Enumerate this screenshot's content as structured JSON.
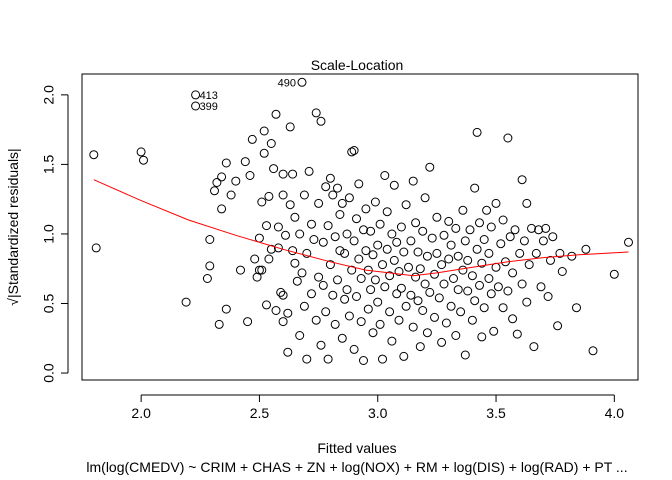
{
  "chart_data": {
    "type": "scatter",
    "title": "Scale-Location",
    "xlabel": "Fitted values",
    "subtitle": "lm(log(CMEDV) ~ CRIM + CHAS + ZN + log(NOX) + RM + log(DIS) + log(RAD) + PT ...",
    "ylabel": "√|Standardized residuals|",
    "xlim": [
      1.75,
      4.1
    ],
    "ylim": [
      -0.05,
      2.15
    ],
    "x_ticks": [
      "2.0",
      "2.5",
      "3.0",
      "3.5",
      "4.0"
    ],
    "y_ticks": [
      "0.0",
      "0.5",
      "1.0",
      "1.5",
      "2.0"
    ],
    "labeled_points": [
      {
        "label": "413",
        "x": 2.23,
        "y": 2.0
      },
      {
        "label": "399",
        "x": 2.23,
        "y": 1.92
      },
      {
        "label": "490",
        "x": 2.68,
        "y": 2.09
      }
    ],
    "points": [
      [
        1.8,
        1.57
      ],
      [
        1.81,
        0.9
      ],
      [
        2.0,
        1.59
      ],
      [
        2.01,
        1.53
      ],
      [
        2.19,
        0.51
      ],
      [
        2.23,
        1.92
      ],
      [
        2.23,
        2.0
      ],
      [
        2.28,
        0.68
      ],
      [
        2.29,
        0.77
      ],
      [
        2.29,
        0.96
      ],
      [
        2.31,
        1.31
      ],
      [
        2.32,
        1.37
      ],
      [
        2.33,
        0.35
      ],
      [
        2.34,
        1.41
      ],
      [
        2.34,
        1.18
      ],
      [
        2.36,
        0.46
      ],
      [
        2.36,
        1.51
      ],
      [
        2.38,
        1.28
      ],
      [
        2.4,
        1.38
      ],
      [
        2.42,
        0.74
      ],
      [
        2.44,
        1.52
      ],
      [
        2.45,
        0.37
      ],
      [
        2.46,
        1.42
      ],
      [
        2.47,
        1.68
      ],
      [
        2.48,
        0.82
      ],
      [
        2.49,
        0.69
      ],
      [
        2.5,
        0.97
      ],
      [
        2.5,
        0.74
      ],
      [
        2.51,
        1.23
      ],
      [
        2.51,
        0.74
      ],
      [
        2.52,
        1.58
      ],
      [
        2.52,
        1.74
      ],
      [
        2.53,
        0.49
      ],
      [
        2.53,
        1.06
      ],
      [
        2.54,
        0.82
      ],
      [
        2.54,
        1.27
      ],
      [
        2.55,
        1.65
      ],
      [
        2.55,
        0.89
      ],
      [
        2.56,
        1.47
      ],
      [
        2.57,
        1.86
      ],
      [
        2.57,
        0.45
      ],
      [
        2.58,
        0.9
      ],
      [
        2.58,
        1.05
      ],
      [
        2.59,
        0.58
      ],
      [
        2.6,
        0.56
      ],
      [
        2.6,
        0.37
      ],
      [
        2.6,
        1.43
      ],
      [
        2.6,
        1.28
      ],
      [
        2.61,
        0.99
      ],
      [
        2.62,
        0.43
      ],
      [
        2.62,
        0.15
      ],
      [
        2.63,
        1.21
      ],
      [
        2.63,
        1.77
      ],
      [
        2.64,
        1.43
      ],
      [
        2.64,
        0.88
      ],
      [
        2.65,
        1.12
      ],
      [
        2.65,
        0.79
      ],
      [
        2.66,
        0.66
      ],
      [
        2.67,
        1.0
      ],
      [
        2.67,
        0.27
      ],
      [
        2.68,
        2.09
      ],
      [
        2.68,
        0.72
      ],
      [
        2.69,
        0.48
      ],
      [
        2.69,
        1.28
      ],
      [
        2.7,
        0.1
      ],
      [
        2.7,
        0.86
      ],
      [
        2.71,
        1.45
      ],
      [
        2.72,
        0.57
      ],
      [
        2.72,
        1.07
      ],
      [
        2.73,
        0.96
      ],
      [
        2.74,
        1.87
      ],
      [
        2.74,
        0.38
      ],
      [
        2.75,
        0.69
      ],
      [
        2.75,
        1.22
      ],
      [
        2.76,
        0.2
      ],
      [
        2.76,
        1.81
      ],
      [
        2.77,
        0.94
      ],
      [
        2.77,
        0.63
      ],
      [
        2.78,
        1.34
      ],
      [
        2.78,
        0.44
      ],
      [
        2.79,
        0.1
      ],
      [
        2.79,
        1.06
      ],
      [
        2.8,
        0.78
      ],
      [
        2.8,
        1.4
      ],
      [
        2.81,
        0.56
      ],
      [
        2.81,
        1.28
      ],
      [
        2.82,
        0.98
      ],
      [
        2.82,
        0.35
      ],
      [
        2.83,
        1.33
      ],
      [
        2.83,
        0.67
      ],
      [
        2.84,
        0.88
      ],
      [
        2.84,
        1.14
      ],
      [
        2.85,
        0.25
      ],
      [
        2.85,
        1.22
      ],
      [
        2.86,
        0.53
      ],
      [
        2.86,
        0.86
      ],
      [
        2.87,
        0.6
      ],
      [
        2.87,
        1.0
      ],
      [
        2.88,
        0.41
      ],
      [
        2.88,
        1.26
      ],
      [
        2.89,
        1.59
      ],
      [
        2.89,
        0.74
      ],
      [
        2.9,
        0.95
      ],
      [
        2.9,
        1.6
      ],
      [
        2.9,
        0.17
      ],
      [
        2.91,
        0.55
      ],
      [
        2.91,
        1.11
      ],
      [
        2.92,
        0.82
      ],
      [
        2.92,
        1.36
      ],
      [
        2.93,
        0.37
      ],
      [
        2.93,
        0.68
      ],
      [
        2.94,
        1.03
      ],
      [
        2.94,
        0.09
      ],
      [
        2.95,
        0.88
      ],
      [
        2.95,
        1.18
      ],
      [
        2.96,
        0.46
      ],
      [
        2.96,
        0.74
      ],
      [
        2.97,
        1.02
      ],
      [
        2.97,
        0.6
      ],
      [
        2.98,
        0.29
      ],
      [
        2.98,
        0.85
      ],
      [
        2.99,
        1.23
      ],
      [
        2.99,
        0.67
      ],
      [
        3.0,
        0.51
      ],
      [
        3.0,
        0.92
      ],
      [
        3.01,
        1.07
      ],
      [
        3.01,
        0.35
      ],
      [
        3.02,
        0.78
      ],
      [
        3.02,
        0.1
      ],
      [
        3.03,
        1.42
      ],
      [
        3.03,
        0.62
      ],
      [
        3.04,
        0.89
      ],
      [
        3.04,
        1.16
      ],
      [
        3.05,
        0.44
      ],
      [
        3.05,
        0.7
      ],
      [
        3.06,
        1.0
      ],
      [
        3.06,
        0.23
      ],
      [
        3.07,
        0.81
      ],
      [
        3.07,
        1.35
      ],
      [
        3.08,
        0.57
      ],
      [
        3.08,
        0.94
      ],
      [
        3.09,
        0.38
      ],
      [
        3.09,
        0.73
      ],
      [
        3.1,
        1.05
      ],
      [
        3.1,
        0.61
      ],
      [
        3.11,
        0.12
      ],
      [
        3.11,
        0.87
      ],
      [
        3.12,
        0.48
      ],
      [
        3.12,
        1.21
      ],
      [
        3.13,
        0.76
      ],
      [
        3.14,
        0.56
      ],
      [
        3.14,
        0.95
      ],
      [
        3.15,
        1.38
      ],
      [
        3.15,
        0.33
      ],
      [
        3.16,
        0.69
      ],
      [
        3.16,
        1.08
      ],
      [
        3.17,
        0.52
      ],
      [
        3.17,
        0.87
      ],
      [
        3.18,
        0.19
      ],
      [
        3.18,
        0.75
      ],
      [
        3.19,
        1.02
      ],
      [
        3.19,
        0.45
      ],
      [
        3.2,
        0.64
      ],
      [
        3.2,
        1.26
      ],
      [
        3.21,
        0.84
      ],
      [
        3.21,
        0.29
      ],
      [
        3.22,
        1.48
      ],
      [
        3.22,
        0.58
      ],
      [
        3.23,
        0.97
      ],
      [
        3.24,
        0.71
      ],
      [
        3.24,
        0.4
      ],
      [
        3.25,
        1.12
      ],
      [
        3.25,
        0.86
      ],
      [
        3.26,
        0.54
      ],
      [
        3.27,
        0.22
      ],
      [
        3.27,
        0.78
      ],
      [
        3.28,
        0.99
      ],
      [
        3.28,
        0.64
      ],
      [
        3.29,
        0.36
      ],
      [
        3.3,
        1.09
      ],
      [
        3.3,
        0.82
      ],
      [
        3.31,
        0.48
      ],
      [
        3.31,
        0.92
      ],
      [
        3.32,
        0.68
      ],
      [
        3.33,
        0.27
      ],
      [
        3.33,
        1.04
      ],
      [
        3.34,
        0.6
      ],
      [
        3.34,
        0.84
      ],
      [
        3.35,
        0.44
      ],
      [
        3.36,
        1.17
      ],
      [
        3.36,
        0.74
      ],
      [
        3.37,
        0.95
      ],
      [
        3.37,
        0.13
      ],
      [
        3.38,
        0.59
      ],
      [
        3.38,
        0.81
      ],
      [
        3.39,
        1.03
      ],
      [
        3.4,
        0.38
      ],
      [
        3.4,
        0.7
      ],
      [
        3.41,
        1.33
      ],
      [
        3.41,
        0.52
      ],
      [
        3.42,
        0.89
      ],
      [
        3.42,
        1.73
      ],
      [
        3.43,
        0.63
      ],
      [
        3.43,
        1.08
      ],
      [
        3.44,
        0.26
      ],
      [
        3.44,
        0.79
      ],
      [
        3.45,
        0.96
      ],
      [
        3.45,
        0.47
      ],
      [
        3.46,
        1.17
      ],
      [
        3.47,
        0.68
      ],
      [
        3.47,
        0.86
      ],
      [
        3.48,
        0.57
      ],
      [
        3.48,
        1.05
      ],
      [
        3.49,
        0.3
      ],
      [
        3.5,
        0.76
      ],
      [
        3.5,
        1.22
      ],
      [
        3.51,
        0.62
      ],
      [
        3.52,
        0.93
      ],
      [
        3.53,
        0.47
      ],
      [
        3.53,
        1.1
      ],
      [
        3.54,
        0.8
      ],
      [
        3.55,
        1.69
      ],
      [
        3.55,
        0.59
      ],
      [
        3.56,
        0.98
      ],
      [
        3.57,
        0.39
      ],
      [
        3.57,
        0.72
      ],
      [
        3.58,
        1.03
      ],
      [
        3.59,
        0.28
      ],
      [
        3.6,
        0.86
      ],
      [
        3.61,
        1.39
      ],
      [
        3.61,
        0.64
      ],
      [
        3.62,
        0.95
      ],
      [
        3.63,
        1.22
      ],
      [
        3.63,
        0.51
      ],
      [
        3.64,
        0.78
      ],
      [
        3.65,
        1.04
      ],
      [
        3.66,
        0.19
      ],
      [
        3.67,
        0.86
      ],
      [
        3.68,
        1.03
      ],
      [
        3.69,
        0.62
      ],
      [
        3.7,
        0.95
      ],
      [
        3.71,
        1.04
      ],
      [
        3.72,
        0.55
      ],
      [
        3.73,
        0.81
      ],
      [
        3.74,
        0.98
      ],
      [
        3.76,
        0.34
      ],
      [
        3.77,
        0.86
      ],
      [
        3.78,
        0.73
      ],
      [
        3.82,
        0.84
      ],
      [
        3.84,
        0.47
      ],
      [
        3.88,
        0.89
      ],
      [
        3.91,
        0.16
      ],
      [
        4.0,
        0.71
      ],
      [
        4.06,
        0.94
      ]
    ],
    "fit_line": [
      [
        1.8,
        1.39
      ],
      [
        2.0,
        1.24
      ],
      [
        2.2,
        1.1
      ],
      [
        2.4,
        0.99
      ],
      [
        2.6,
        0.89
      ],
      [
        2.8,
        0.8
      ],
      [
        2.95,
        0.74
      ],
      [
        3.05,
        0.72
      ],
      [
        3.15,
        0.7
      ],
      [
        3.25,
        0.72
      ],
      [
        3.4,
        0.76
      ],
      [
        3.55,
        0.8
      ],
      [
        3.7,
        0.83
      ],
      [
        3.85,
        0.85
      ],
      [
        4.06,
        0.87
      ]
    ],
    "colors": {
      "points": "#000000",
      "fit_line": "#ff0000",
      "axis": "#000000"
    },
    "grid": false
  }
}
